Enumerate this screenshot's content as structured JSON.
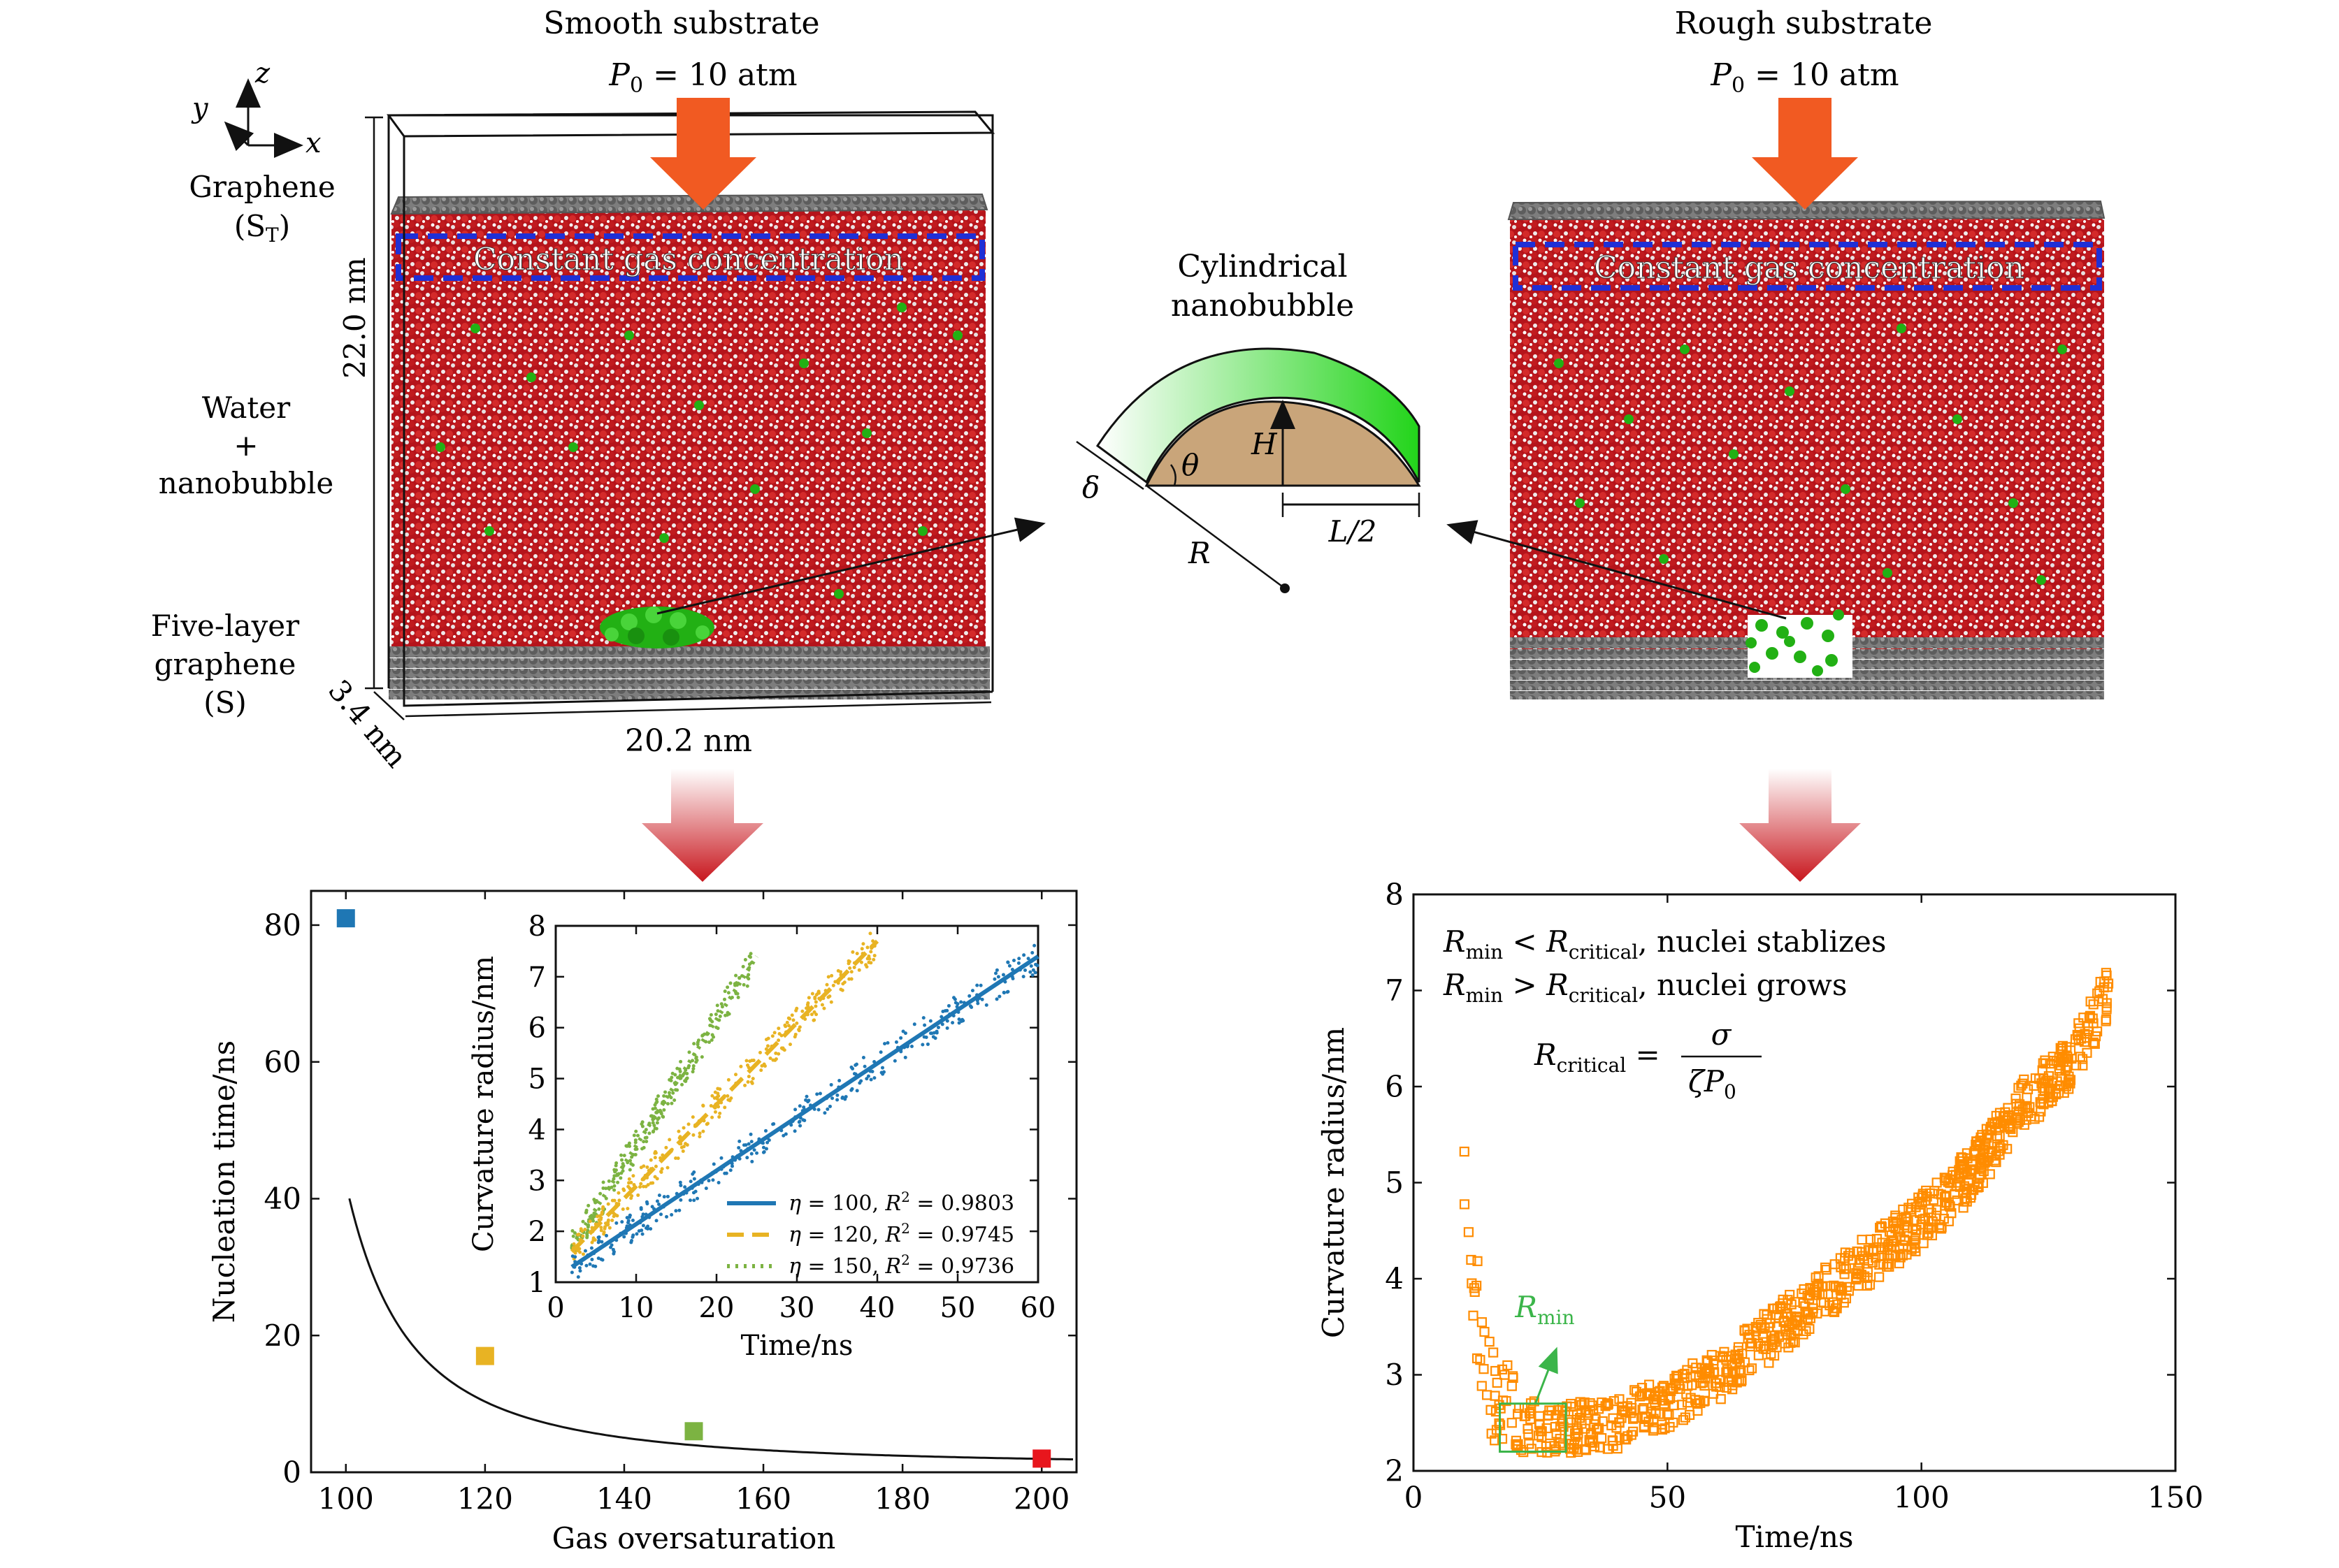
{
  "left_panel": {
    "title": "Smooth substrate",
    "pressure_var": "P",
    "pressure_sub": "0",
    "pressure_val": " = 10 atm",
    "axis_x": "x",
    "axis_y": "y",
    "axis_z": "z",
    "label_graphene": "Graphene",
    "label_st_open": "(S",
    "label_st_sub": "T",
    "label_st_close": ")",
    "label_water": "Water",
    "label_plus": "+",
    "label_nanobubble": "nanobubble",
    "label_five_layer": "Five-layer",
    "label_graphene2": "graphene",
    "label_s": "(S)",
    "dim_height": "22.0 nm",
    "dim_width": "20.2 nm",
    "dim_depth": "3.4 nm",
    "gas_box": "Constant gas concentration"
  },
  "right_panel": {
    "title": "Rough substrate",
    "pressure_var": "P",
    "pressure_sub": "0",
    "pressure_val": " = 10 atm",
    "gas_box": "Constant gas concentration"
  },
  "center_diagram": {
    "title_line1": "Cylindrical",
    "title_line2": "nanobubble",
    "label_H": "H",
    "label_theta": "θ",
    "label_delta": "δ",
    "label_L": "L/2",
    "label_R": "R"
  },
  "colors": {
    "arrow": "#f15a22",
    "water_red": "#c8161d",
    "gas_green": "#22b014",
    "graphene": "#7a7a7a",
    "box_blue": "#1f2fd6",
    "bubble_fill": "#c9a57a",
    "series_blue": "#1f77b4",
    "series_yellow": "#e8b323",
    "series_green": "#7cb342",
    "marker_red": "#e8161d",
    "marker_orange": "#ff8c00"
  },
  "chart_data": [
    {
      "type": "scatter",
      "title": "",
      "xlabel": "Gas oversaturation",
      "ylabel": "Nucleation time/ns",
      "xlim": [
        95,
        205
      ],
      "ylim": [
        0,
        85
      ],
      "xticks": [
        "100",
        "120",
        "140",
        "160",
        "180",
        "200"
      ],
      "yticks": [
        "0",
        "20",
        "40",
        "60",
        "80"
      ],
      "points": [
        {
          "x": 100,
          "y": 81,
          "color": "#1f77b4"
        },
        {
          "x": 120,
          "y": 17,
          "color": "#e8b323"
        },
        {
          "x": 150,
          "y": 6,
          "color": "#7cb342"
        },
        {
          "x": 200,
          "y": 2,
          "color": "#e8161d"
        }
      ],
      "fit_curve": "decay"
    },
    {
      "type": "line",
      "title": "",
      "xlabel": "Time/ns",
      "ylabel": "Curvature radius/nm",
      "xlim": [
        0,
        60
      ],
      "ylim": [
        1,
        8
      ],
      "xticks": [
        "0",
        "10",
        "20",
        "30",
        "40",
        "50",
        "60"
      ],
      "yticks": [
        "1",
        "2",
        "3",
        "4",
        "5",
        "6",
        "7",
        "8"
      ],
      "series": [
        {
          "name": "η = 150,  R² = 0.9736",
          "eta": "150",
          "r2": "0.9736",
          "color": "#7cb342",
          "style": "dotted",
          "x": [
            2,
            25
          ],
          "y": [
            1.7,
            7.4
          ]
        },
        {
          "name": "η = 120,  R² = 0.9745",
          "eta": "120",
          "r2": "0.9745",
          "color": "#e8b323",
          "style": "dashed",
          "x": [
            2,
            40
          ],
          "y": [
            1.6,
            7.7
          ]
        },
        {
          "name": "η = 100,  R² = 0.9803",
          "eta": "100",
          "r2": "0.9803",
          "color": "#1f77b4",
          "style": "solid",
          "x": [
            2,
            60
          ],
          "y": [
            1.3,
            7.4
          ]
        }
      ],
      "legend": "bottom-right"
    },
    {
      "type": "scatter",
      "title": "",
      "xlabel": "Time/ns",
      "ylabel": "Curvature radius/nm",
      "xlim": [
        0,
        150
      ],
      "ylim": [
        2,
        8
      ],
      "xticks": [
        "0",
        "50",
        "100",
        "150"
      ],
      "yticks": [
        "2",
        "3",
        "4",
        "5",
        "6",
        "7",
        "8"
      ],
      "annotation_line1": "R_min < R_critical, nuclei stablizes",
      "annotation_line2": "R_min > R_critical, nuclei grows",
      "annotation_formula": "R_critical = σ / (ζ P_0)",
      "rmin_label": "R_min",
      "series": [
        {
          "name": "curvature radius",
          "color": "#ff8c00",
          "x": [
            10,
            12,
            14,
            17,
            20,
            25,
            30,
            40,
            50,
            60,
            70,
            80,
            90,
            100,
            110,
            120,
            130,
            137
          ],
          "y": [
            5.3,
            4.0,
            3.0,
            2.55,
            2.45,
            2.45,
            2.45,
            2.5,
            2.7,
            3.0,
            3.4,
            3.8,
            4.2,
            4.6,
            5.1,
            5.8,
            6.3,
            7.0
          ]
        }
      ]
    }
  ]
}
